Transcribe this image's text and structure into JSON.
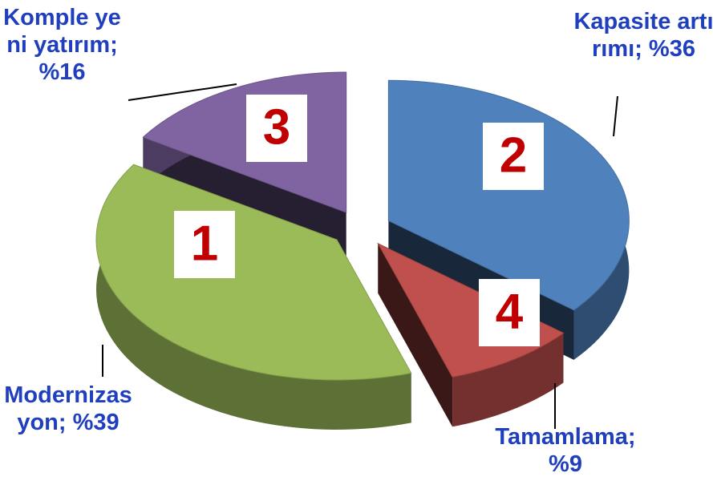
{
  "chart_data": {
    "type": "pie3d",
    "labels": [
      "Kapasite artırımı; %36",
      "Tamamlama; %9",
      "Modernizasyon; %39",
      "Komple yeni yatırım; %16"
    ],
    "values": [
      36,
      9,
      39,
      16
    ],
    "slice_numbers": [
      2,
      4,
      1,
      3
    ],
    "colors": [
      "#4f81bd",
      "#c0504d",
      "#9bbb59",
      "#8064a2"
    ]
  }
}
